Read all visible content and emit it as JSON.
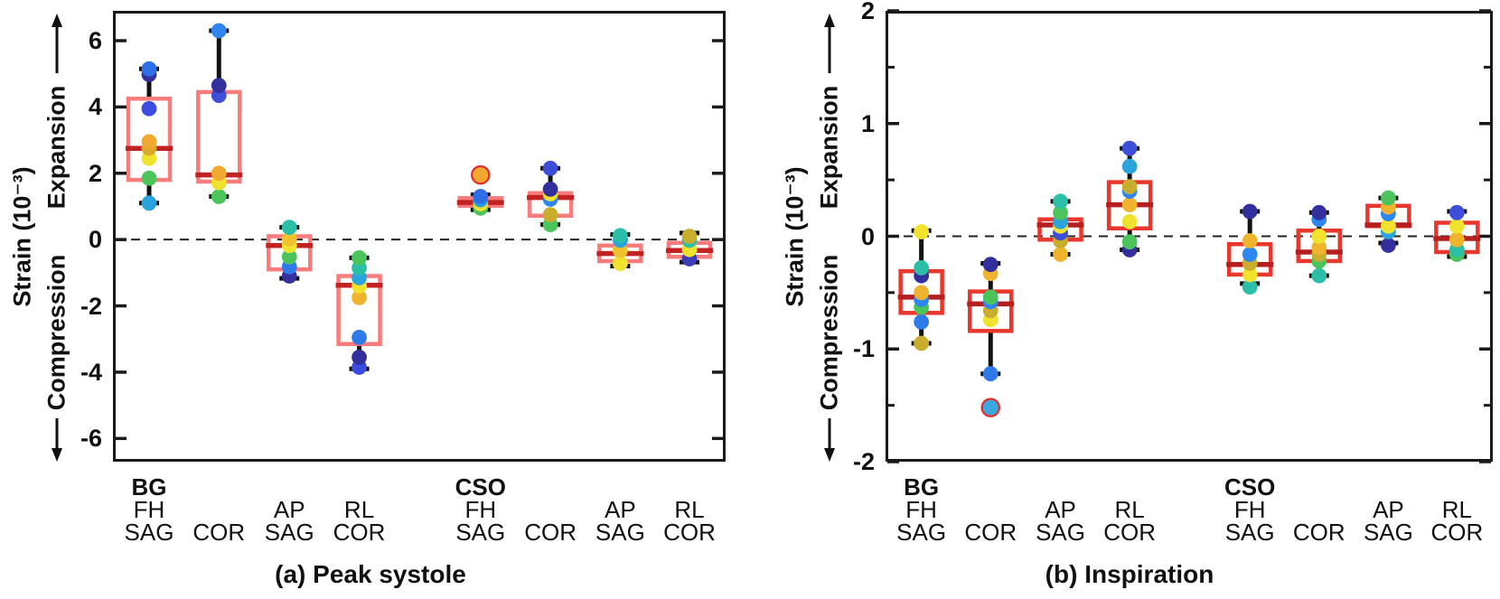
{
  "figure": {
    "background": "#ffffff"
  },
  "chart_data": [
    {
      "type": "box",
      "title": "(a) Peak systole",
      "ylabel": "Strain (10⁻³)",
      "direction_labels": {
        "up": "Expansion",
        "down": "Compression"
      },
      "ylim": [
        -6.7,
        6.9
      ],
      "yticks": [
        {
          "v": 6,
          "label": "6"
        },
        {
          "v": 4,
          "label": "4"
        },
        {
          "v": 2,
          "label": "2"
        },
        {
          "v": 0,
          "label": "0"
        },
        {
          "v": -2,
          "label": "-2"
        },
        {
          "v": -4,
          "label": "-4"
        },
        {
          "v": -6,
          "label": "-6"
        }
      ],
      "yticks_minor": [],
      "zero_line": true,
      "legend": "none",
      "grid": false,
      "style": {
        "box_color": "#f87c7c",
        "median_color": "#c22222",
        "whisker_color": "#111111",
        "outlier_ring_color": "#e03030"
      },
      "boxes": [
        {
          "x_frac": 0.059,
          "labels": [
            "BG",
            "FH",
            "SAG"
          ],
          "whisker_low": 1.1,
          "q1": 1.8,
          "median": 2.75,
          "q3": 4.25,
          "whisker_high": 5.15,
          "points": [
            {
              "v": 5.15,
              "color": "#2e6fe8"
            },
            {
              "v": 4.98,
              "color": "#33309e"
            },
            {
              "v": 3.95,
              "color": "#3d4ce0"
            },
            {
              "v": 2.95,
              "color": "#f0a92e"
            },
            {
              "v": 2.76,
              "color": "#d8ab2e"
            },
            {
              "v": 2.45,
              "color": "#f0e32e"
            },
            {
              "v": 1.85,
              "color": "#4cc45c"
            },
            {
              "v": 1.1,
              "color": "#2ba3dc"
            }
          ]
        },
        {
          "x_frac": 0.173,
          "labels": [
            "",
            "",
            "COR"
          ],
          "whisker_low": 1.3,
          "q1": 1.75,
          "median": 1.95,
          "q3": 4.45,
          "whisker_high": 6.3,
          "points": [
            {
              "v": 6.3,
              "color": "#2e86f0"
            },
            {
              "v": 4.65,
              "color": "#33309e"
            },
            {
              "v": 4.35,
              "color": "#3d4fd8"
            },
            {
              "v": 2.0,
              "color": "#f0a92e"
            },
            {
              "v": 1.72,
              "color": "#f0e32e"
            },
            {
              "v": 1.3,
              "color": "#4cc45c"
            }
          ]
        },
        {
          "x_frac": 0.288,
          "labels": [
            "",
            "AP",
            "SAG"
          ],
          "whisker_low": -1.17,
          "q1": -0.9,
          "median": -0.18,
          "q3": 0.1,
          "whisker_high": 0.37,
          "points": [
            {
              "v": 0.37,
              "color": "#2bbfa8"
            },
            {
              "v": 0.02,
              "color": "#f0c22e"
            },
            {
              "v": -0.18,
              "color": "#f0e32e"
            },
            {
              "v": -0.52,
              "color": "#4cc45c"
            },
            {
              "v": -0.82,
              "color": "#2e7ae8"
            },
            {
              "v": -1.1,
              "color": "#33309e"
            }
          ]
        },
        {
          "x_frac": 0.402,
          "labels": [
            "",
            "RL",
            "COR"
          ],
          "whisker_low": -3.9,
          "q1": -3.15,
          "median": -1.38,
          "q3": -1.1,
          "whisker_high": -0.55,
          "points": [
            {
              "v": -0.55,
              "color": "#4cc45c"
            },
            {
              "v": -0.85,
              "color": "#2bbfa8"
            },
            {
              "v": -1.15,
              "color": "#2ba3dc"
            },
            {
              "v": -1.4,
              "color": "#f0e32e"
            },
            {
              "v": -1.75,
              "color": "#f0b32e"
            },
            {
              "v": -2.95,
              "color": "#2e7ae8"
            },
            {
              "v": -3.55,
              "color": "#33309e"
            },
            {
              "v": -3.85,
              "color": "#3d4ce0"
            }
          ]
        },
        {
          "x_frac": 0.6,
          "labels": [
            "CSO",
            "FH",
            "SAG"
          ],
          "whisker_low": 0.9,
          "q1": 1.02,
          "median": 1.12,
          "q3": 1.25,
          "whisker_high": 1.35,
          "points": [
            {
              "v": 1.95,
              "color": "#f0a92e",
              "ring": true
            },
            {
              "v": 1.3,
              "color": "#2e6fe8"
            },
            {
              "v": 1.2,
              "color": "#2ba3dc"
            },
            {
              "v": 1.08,
              "color": "#f0e32e"
            },
            {
              "v": 0.95,
              "color": "#4cc45c"
            }
          ]
        },
        {
          "x_frac": 0.714,
          "labels": [
            "",
            "",
            "COR"
          ],
          "whisker_low": 0.45,
          "q1": 0.72,
          "median": 1.27,
          "q3": 1.4,
          "whisker_high": 2.15,
          "points": [
            {
              "v": 2.15,
              "color": "#3d4fd8"
            },
            {
              "v": 1.52,
              "color": "#33309e"
            },
            {
              "v": 1.38,
              "color": "#f0e32e"
            },
            {
              "v": 1.22,
              "color": "#2e86f0"
            },
            {
              "v": 0.75,
              "color": "#c9ae2e"
            },
            {
              "v": 0.45,
              "color": "#4cc45c"
            }
          ]
        },
        {
          "x_frac": 0.828,
          "labels": [
            "",
            "AP",
            "SAG"
          ],
          "whisker_low": -0.8,
          "q1": -0.65,
          "median": -0.42,
          "q3": -0.18,
          "whisker_high": 0.15,
          "points": [
            {
              "v": 0.12,
              "color": "#2bbfa8"
            },
            {
              "v": -0.02,
              "color": "#2ba3dc"
            },
            {
              "v": -0.33,
              "color": "#f0c22e"
            },
            {
              "v": -0.72,
              "color": "#f0e32e"
            }
          ]
        },
        {
          "x_frac": 0.941,
          "labels": [
            "",
            "RL",
            "COR"
          ],
          "whisker_low": -0.68,
          "q1": -0.52,
          "median": -0.33,
          "q3": -0.1,
          "whisker_high": 0.2,
          "points": [
            {
              "v": 0.1,
              "color": "#c9ae2e"
            },
            {
              "v": -0.02,
              "color": "#2bbfa8"
            },
            {
              "v": -0.3,
              "color": "#f0e32e"
            },
            {
              "v": -0.58,
              "color": "#3d3db8"
            }
          ]
        }
      ]
    },
    {
      "type": "box",
      "title": "(b) Inspiration",
      "ylabel": "Strain (10⁻³)",
      "direction_labels": {
        "up": "Expansion",
        "down": "Compression"
      },
      "ylim": [
        -2,
        2
      ],
      "yticks": [
        {
          "v": 2,
          "label": "2"
        },
        {
          "v": 1,
          "label": "1"
        },
        {
          "v": 0,
          "label": "0"
        },
        {
          "v": -1,
          "label": "-1"
        },
        {
          "v": -2,
          "label": "-2"
        }
      ],
      "yticks_minor": [
        1.5,
        0.5,
        -0.5,
        -1.5
      ],
      "zero_line": true,
      "legend": "none",
      "grid": false,
      "style": {
        "box_color": "#e8372c",
        "median_color": "#b51f1f",
        "whisker_color": "#111111",
        "outlier_ring_color": "#e03030"
      },
      "boxes": [
        {
          "x_frac": 0.059,
          "labels": [
            "BG",
            "FH",
            "SAG"
          ],
          "whisker_low": -0.95,
          "q1": -0.68,
          "median": -0.54,
          "q3": -0.31,
          "whisker_high": 0.05,
          "points": [
            {
              "v": 0.04,
              "color": "#f0e32e"
            },
            {
              "v": -0.28,
              "color": "#2bbfa8"
            },
            {
              "v": -0.35,
              "color": "#33309e"
            },
            {
              "v": -0.5,
              "color": "#f0b32e"
            },
            {
              "v": -0.56,
              "color": "#2e86f0"
            },
            {
              "v": -0.63,
              "color": "#4cc45c"
            },
            {
              "v": -0.76,
              "color": "#2e7ae8"
            },
            {
              "v": -0.95,
              "color": "#c9ae2e"
            }
          ]
        },
        {
          "x_frac": 0.173,
          "labels": [
            "",
            "",
            "COR"
          ],
          "whisker_low": -1.22,
          "q1": -0.84,
          "median": -0.6,
          "q3": -0.49,
          "whisker_high": -0.24,
          "points": [
            {
              "v": -0.25,
              "color": "#33309e"
            },
            {
              "v": -0.33,
              "color": "#f0b32e"
            },
            {
              "v": -0.54,
              "color": "#4cc45c"
            },
            {
              "v": -0.58,
              "color": "#2e86f0"
            },
            {
              "v": -0.66,
              "color": "#c9ae2e"
            },
            {
              "v": -0.74,
              "color": "#f0e32e"
            },
            {
              "v": -1.22,
              "color": "#2e7ae8"
            },
            {
              "v": -1.52,
              "color": "#38a8e0",
              "ring": true
            }
          ]
        },
        {
          "x_frac": 0.288,
          "labels": [
            "",
            "AP",
            "SAG"
          ],
          "whisker_low": -0.16,
          "q1": -0.03,
          "median": 0.1,
          "q3": 0.15,
          "whisker_high": 0.31,
          "points": [
            {
              "v": 0.31,
              "color": "#2bbfa8"
            },
            {
              "v": 0.21,
              "color": "#4cc45c"
            },
            {
              "v": 0.13,
              "color": "#2ba3dc"
            },
            {
              "v": 0.09,
              "color": "#f0e32e"
            },
            {
              "v": 0.03,
              "color": "#3d4fd8"
            },
            {
              "v": -0.04,
              "color": "#c9ae2e"
            },
            {
              "v": -0.16,
              "color": "#f0b32e"
            }
          ]
        },
        {
          "x_frac": 0.402,
          "labels": [
            "",
            "RL",
            "COR"
          ],
          "whisker_low": -0.12,
          "q1": 0.07,
          "median": 0.28,
          "q3": 0.48,
          "whisker_high": 0.78,
          "points": [
            {
              "v": 0.78,
              "color": "#3d4fd8"
            },
            {
              "v": 0.62,
              "color": "#2ba3dc"
            },
            {
              "v": 0.44,
              "color": "#c9ae2e"
            },
            {
              "v": 0.4,
              "color": "#2e86f0"
            },
            {
              "v": 0.28,
              "color": "#f0b32e"
            },
            {
              "v": 0.13,
              "color": "#f0e32e"
            },
            {
              "v": -0.05,
              "color": "#4cc45c"
            },
            {
              "v": -0.12,
              "color": "#33309e"
            }
          ]
        },
        {
          "x_frac": 0.6,
          "labels": [
            "CSO",
            "FH",
            "SAG"
          ],
          "whisker_low": -0.42,
          "q1": -0.34,
          "median": -0.25,
          "q3": -0.07,
          "whisker_high": 0.22,
          "points": [
            {
              "v": 0.22,
              "color": "#33309e"
            },
            {
              "v": -0.04,
              "color": "#f0b32e"
            },
            {
              "v": -0.16,
              "color": "#2e86f0"
            },
            {
              "v": -0.24,
              "color": "#c9ae2e"
            },
            {
              "v": -0.34,
              "color": "#f0e32e"
            },
            {
              "v": -0.45,
              "color": "#2bbfa8"
            }
          ]
        },
        {
          "x_frac": 0.714,
          "labels": [
            "",
            "",
            "COR"
          ],
          "whisker_low": -0.35,
          "q1": -0.22,
          "median": -0.14,
          "q3": 0.05,
          "whisker_high": 0.21,
          "points": [
            {
              "v": 0.21,
              "color": "#33309e"
            },
            {
              "v": 0.15,
              "color": "#2e86f0"
            },
            {
              "v": 0.0,
              "color": "#f0e32e"
            },
            {
              "v": -0.1,
              "color": "#f0b32e"
            },
            {
              "v": -0.16,
              "color": "#c9ae2e"
            },
            {
              "v": -0.22,
              "color": "#4cc45c"
            },
            {
              "v": -0.35,
              "color": "#2bbfa8"
            }
          ]
        },
        {
          "x_frac": 0.828,
          "labels": [
            "",
            "AP",
            "SAG"
          ],
          "whisker_low": -0.06,
          "q1": 0.09,
          "median": 0.1,
          "q3": 0.27,
          "whisker_high": 0.34,
          "points": [
            {
              "v": 0.34,
              "color": "#4cc45c"
            },
            {
              "v": 0.26,
              "color": "#f0b32e"
            },
            {
              "v": 0.2,
              "color": "#2e86f0"
            },
            {
              "v": 0.09,
              "color": "#f0e32e"
            },
            {
              "v": 0.04,
              "color": "#2ba3dc"
            },
            {
              "v": -0.08,
              "color": "#33309e"
            }
          ]
        },
        {
          "x_frac": 0.941,
          "labels": [
            "",
            "RL",
            "COR"
          ],
          "whisker_low": -0.18,
          "q1": -0.14,
          "median": -0.02,
          "q3": 0.12,
          "whisker_high": 0.22,
          "points": [
            {
              "v": 0.21,
              "color": "#3d4fd8"
            },
            {
              "v": 0.09,
              "color": "#f0e32e"
            },
            {
              "v": -0.03,
              "color": "#f0b32e"
            },
            {
              "v": -0.12,
              "color": "#2bbfa8"
            },
            {
              "v": -0.16,
              "color": "#4cc45c"
            }
          ]
        }
      ]
    }
  ]
}
